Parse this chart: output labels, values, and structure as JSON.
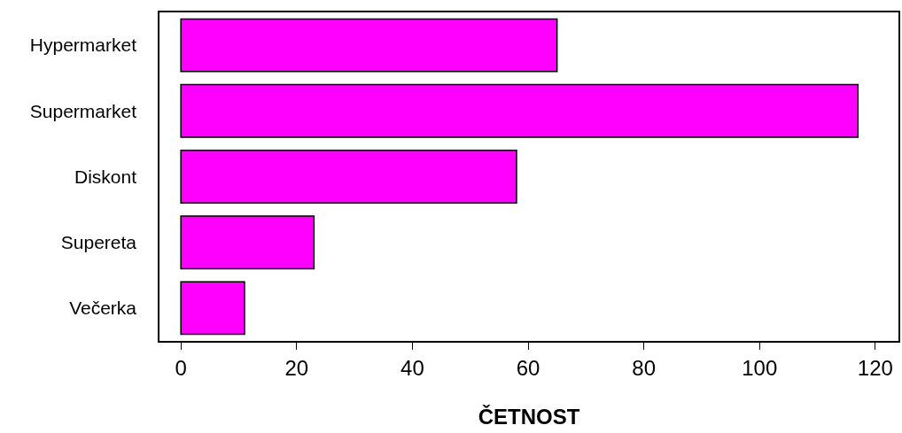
{
  "chart_data": {
    "type": "bar",
    "orientation": "horizontal",
    "xlabel": "ČETNOST",
    "categories": [
      "Hypermarket",
      "Supermarket",
      "Diskont",
      "Supereta",
      "Večerka"
    ],
    "values": [
      65,
      117,
      58,
      23,
      11
    ],
    "color": "#ff00ff",
    "xlim": [
      -3.7,
      124
    ],
    "xticks": [
      0,
      20,
      40,
      60,
      80,
      100,
      120
    ]
  }
}
